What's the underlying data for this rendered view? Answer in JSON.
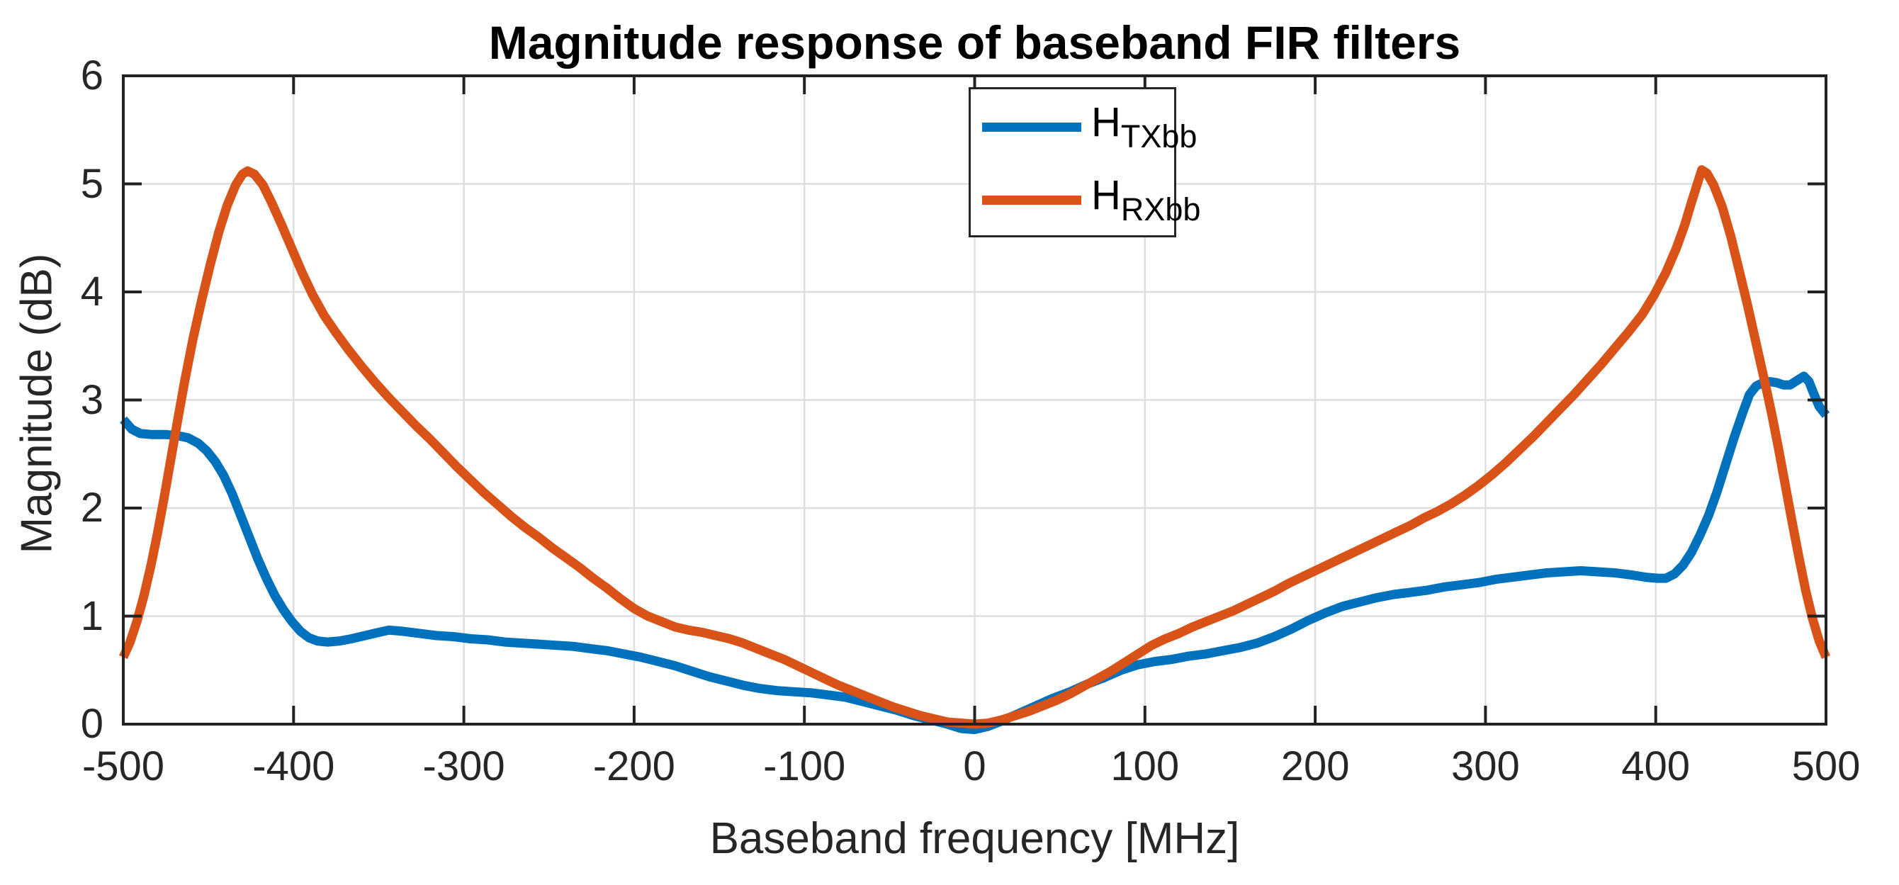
{
  "figure": {
    "title": "Magnitude response of baseband FIR filters",
    "xlabel": "Baseband frequency [MHz]",
    "ylabel": "Magnitude (dB)"
  },
  "legend": {
    "entries": [
      {
        "main": "H",
        "sub": "TXbb",
        "color": "#0072BD"
      },
      {
        "main": "H",
        "sub": "RXbb",
        "color": "#D95319"
      }
    ]
  },
  "colors": {
    "txbb_line": "#0072BD",
    "rxbb_line": "#D95319",
    "grid": "#DEDEDE",
    "axis": "#222222",
    "tick_text": "#262626"
  },
  "chart_data": {
    "type": "line",
    "title": "Magnitude response of baseband FIR filters",
    "xlabel": "Baseband frequency [MHz]",
    "ylabel": "Magnitude (dB)",
    "xlim": [
      -500,
      500
    ],
    "ylim": [
      0,
      6
    ],
    "xticks": [
      -500,
      -400,
      -300,
      -200,
      -100,
      0,
      100,
      200,
      300,
      400,
      500
    ],
    "yticks": [
      0,
      1,
      2,
      3,
      4,
      5,
      6
    ],
    "grid": true,
    "box": true,
    "legend_position": "top-center-inside",
    "series": [
      {
        "name": "H_TXbb",
        "color": "#0072BD",
        "x": [
          -500,
          -495,
          -490,
          -483,
          -475,
          -468,
          -462,
          -456,
          -451,
          -446,
          -441,
          -436,
          -431,
          -426,
          -421,
          -416,
          -411,
          -406,
          -401,
          -396,
          -391,
          -386,
          -380,
          -373,
          -366,
          -358,
          -350,
          -344,
          -336,
          -326,
          -316,
          -306,
          -296,
          -286,
          -276,
          -266,
          -256,
          -246,
          -236,
          -226,
          -216,
          -206,
          -196,
          -186,
          -176,
          -166,
          -156,
          -146,
          -136,
          -126,
          -116,
          -106,
          -96,
          -86,
          -76,
          -66,
          -56,
          -46,
          -36,
          -26,
          -16,
          -8,
          0,
          8,
          16,
          26,
          36,
          46,
          56,
          66,
          76,
          86,
          96,
          106,
          116,
          126,
          136,
          146,
          156,
          166,
          176,
          186,
          196,
          206,
          216,
          226,
          236,
          246,
          256,
          266,
          276,
          286,
          296,
          306,
          316,
          326,
          336,
          346,
          356,
          366,
          376,
          386,
          394,
          401,
          406,
          411,
          416,
          421,
          426,
          431,
          436,
          441,
          446,
          451,
          455,
          459,
          463,
          467,
          471,
          475,
          479,
          483,
          487,
          490,
          493,
          496,
          500
        ],
        "y": [
          2.82,
          2.73,
          2.69,
          2.68,
          2.68,
          2.67,
          2.65,
          2.6,
          2.53,
          2.43,
          2.3,
          2.13,
          1.93,
          1.73,
          1.53,
          1.35,
          1.19,
          1.06,
          0.95,
          0.86,
          0.8,
          0.77,
          0.76,
          0.77,
          0.79,
          0.82,
          0.85,
          0.87,
          0.86,
          0.84,
          0.82,
          0.81,
          0.79,
          0.78,
          0.76,
          0.75,
          0.74,
          0.73,
          0.72,
          0.7,
          0.68,
          0.65,
          0.62,
          0.58,
          0.54,
          0.49,
          0.44,
          0.4,
          0.36,
          0.33,
          0.31,
          0.3,
          0.29,
          0.27,
          0.25,
          0.21,
          0.17,
          0.13,
          0.08,
          0.04,
          0.0,
          -0.04,
          -0.05,
          -0.02,
          0.03,
          0.1,
          0.17,
          0.24,
          0.3,
          0.37,
          0.43,
          0.5,
          0.55,
          0.58,
          0.6,
          0.63,
          0.65,
          0.68,
          0.71,
          0.75,
          0.81,
          0.88,
          0.96,
          1.03,
          1.09,
          1.13,
          1.17,
          1.2,
          1.22,
          1.24,
          1.27,
          1.29,
          1.31,
          1.34,
          1.36,
          1.38,
          1.4,
          1.41,
          1.42,
          1.41,
          1.4,
          1.38,
          1.36,
          1.35,
          1.35,
          1.39,
          1.47,
          1.59,
          1.75,
          1.93,
          2.15,
          2.4,
          2.65,
          2.88,
          3.05,
          3.13,
          3.16,
          3.17,
          3.16,
          3.14,
          3.14,
          3.18,
          3.22,
          3.17,
          3.05,
          2.94,
          2.86
        ]
      },
      {
        "name": "H_RXbb",
        "color": "#D95319",
        "x": [
          -500,
          -496,
          -492,
          -488,
          -484,
          -480,
          -476,
          -472,
          -468,
          -464,
          -459,
          -454,
          -449,
          -444,
          -439,
          -434,
          -430,
          -427,
          -423,
          -418,
          -413,
          -407,
          -401,
          -395,
          -389,
          -382,
          -375,
          -368,
          -360,
          -352,
          -344,
          -336,
          -328,
          -320,
          -312,
          -304,
          -296,
          -288,
          -280,
          -272,
          -264,
          -256,
          -248,
          -240,
          -232,
          -224,
          -216,
          -208,
          -200,
          -192,
          -184,
          -176,
          -168,
          -160,
          -152,
          -144,
          -136,
          -128,
          -120,
          -112,
          -104,
          -96,
          -88,
          -80,
          -72,
          -64,
          -56,
          -48,
          -40,
          -32,
          -24,
          -16,
          -8,
          0,
          8,
          16,
          24,
          32,
          40,
          48,
          56,
          64,
          72,
          80,
          88,
          96,
          104,
          112,
          120,
          128,
          136,
          144,
          152,
          160,
          168,
          176,
          184,
          192,
          200,
          208,
          216,
          224,
          232,
          240,
          248,
          256,
          264,
          272,
          280,
          288,
          296,
          304,
          312,
          320,
          328,
          336,
          344,
          352,
          360,
          368,
          376,
          384,
          392,
          399,
          406,
          412,
          417,
          421,
          425,
          427,
          430,
          434,
          439,
          444,
          449,
          454,
          459,
          464,
          468,
          472,
          476,
          480,
          484,
          488,
          492,
          496,
          500
        ],
        "y": [
          0.62,
          0.76,
          0.95,
          1.18,
          1.45,
          1.76,
          2.1,
          2.46,
          2.82,
          3.17,
          3.57,
          3.92,
          4.25,
          4.55,
          4.8,
          4.99,
          5.09,
          5.12,
          5.09,
          4.99,
          4.83,
          4.62,
          4.4,
          4.18,
          3.98,
          3.78,
          3.62,
          3.47,
          3.31,
          3.16,
          3.02,
          2.89,
          2.76,
          2.64,
          2.51,
          2.38,
          2.26,
          2.14,
          2.03,
          1.92,
          1.82,
          1.73,
          1.63,
          1.54,
          1.45,
          1.35,
          1.26,
          1.16,
          1.07,
          1.0,
          0.95,
          0.9,
          0.87,
          0.85,
          0.82,
          0.79,
          0.75,
          0.7,
          0.65,
          0.6,
          0.54,
          0.48,
          0.42,
          0.36,
          0.31,
          0.26,
          0.21,
          0.16,
          0.12,
          0.08,
          0.05,
          0.02,
          0.01,
          0.0,
          0.01,
          0.04,
          0.08,
          0.12,
          0.17,
          0.22,
          0.28,
          0.35,
          0.42,
          0.49,
          0.57,
          0.65,
          0.73,
          0.79,
          0.84,
          0.9,
          0.95,
          1.0,
          1.05,
          1.11,
          1.17,
          1.23,
          1.3,
          1.36,
          1.42,
          1.48,
          1.54,
          1.6,
          1.66,
          1.72,
          1.78,
          1.84,
          1.91,
          1.97,
          2.04,
          2.12,
          2.21,
          2.31,
          2.42,
          2.54,
          2.66,
          2.79,
          2.92,
          3.05,
          3.19,
          3.33,
          3.48,
          3.63,
          3.79,
          3.97,
          4.18,
          4.4,
          4.62,
          4.83,
          5.03,
          5.13,
          5.1,
          4.99,
          4.79,
          4.52,
          4.2,
          3.87,
          3.52,
          3.17,
          2.88,
          2.56,
          2.22,
          1.88,
          1.55,
          1.24,
          0.98,
          0.77,
          0.62
        ]
      }
    ]
  }
}
